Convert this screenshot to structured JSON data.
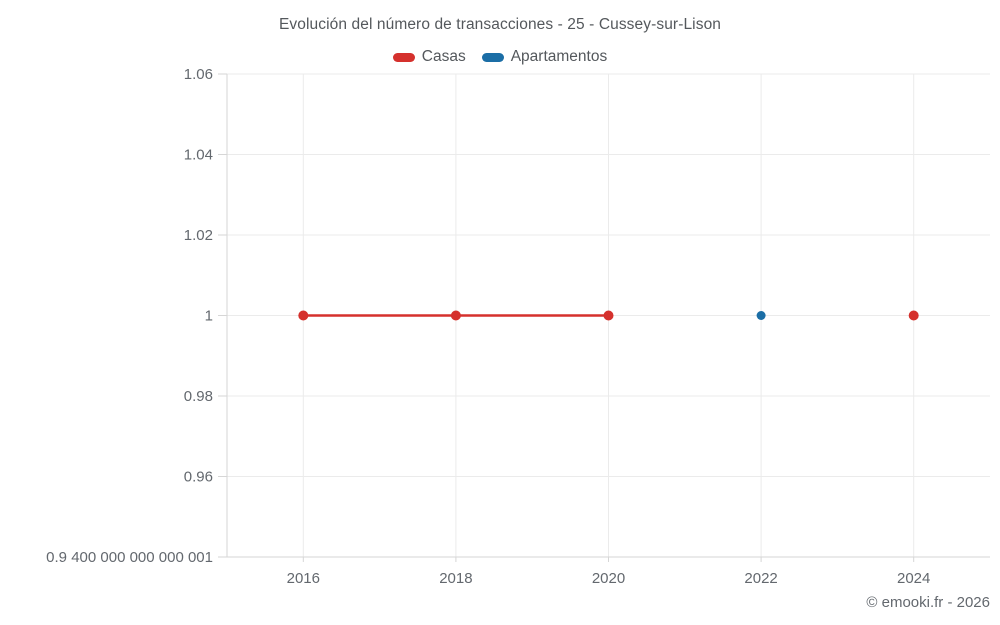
{
  "header": {
    "title": "Evolución del número de transacciones - 25 - Cussey-sur-Lison"
  },
  "legend": {
    "items": [
      {
        "label": "Casas",
        "color": "#d5312d"
      },
      {
        "label": "Apartamentos",
        "color": "#1b6ea6"
      }
    ]
  },
  "footer": {
    "credit": "© emooki.fr - 2026"
  },
  "chart_data": {
    "type": "line",
    "title": "Evolución del número de transacciones - 25 - Cussey-sur-Lison",
    "xlabel": "",
    "ylabel": "",
    "x": [
      2016,
      2018,
      2020,
      2022,
      2024
    ],
    "series": [
      {
        "name": "Casas",
        "color": "#d5312d",
        "values": [
          1,
          1,
          1,
          null,
          1
        ],
        "point_radius": 5,
        "line_width": 2.5
      },
      {
        "name": "Apartamentos",
        "color": "#1b6ea6",
        "values": [
          null,
          null,
          null,
          1,
          null
        ],
        "point_radius": 4.5,
        "line_width": 2.5
      }
    ],
    "xlim": [
      2015,
      2025
    ],
    "ylim": [
      0.94,
      1.06
    ],
    "x_ticks": [
      2016,
      2018,
      2020,
      2022,
      2024
    ],
    "y_ticks": [
      {
        "value": 1.06,
        "label": "1.06"
      },
      {
        "value": 1.04,
        "label": "1.04"
      },
      {
        "value": 1.02,
        "label": "1.02"
      },
      {
        "value": 1.0,
        "label": "1"
      },
      {
        "value": 0.98,
        "label": "0.98"
      },
      {
        "value": 0.96,
        "label": "0.96"
      },
      {
        "value": 0.94,
        "label": "0.9 400 000 000 000 001"
      }
    ],
    "grid": true,
    "legend_position": "top",
    "colors": {
      "gridline": "#ebebeb",
      "axis": "#d6d6d6",
      "tick_label": "#63686e"
    }
  }
}
